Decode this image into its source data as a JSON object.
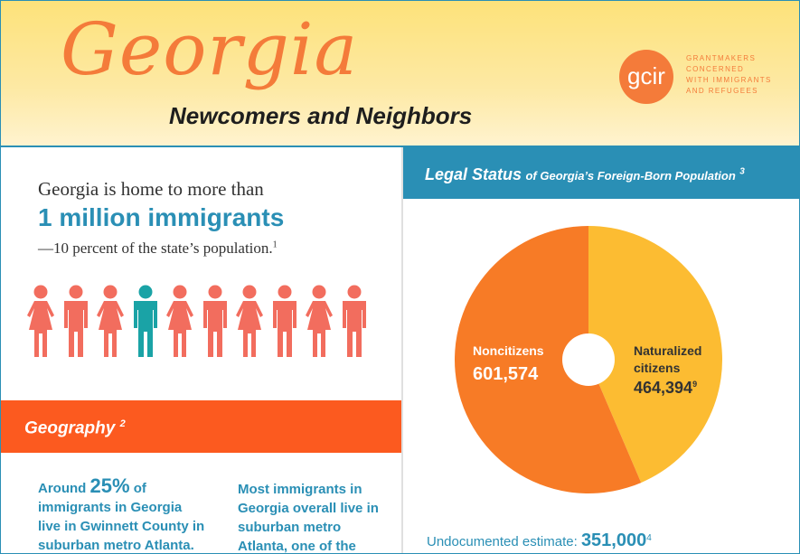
{
  "header": {
    "title": "Georgia",
    "subtitle": "Newcomers and Neighbors",
    "logo": {
      "mark": "gcir",
      "lines": [
        "GRANTMAKERS",
        "CONCERNED",
        "WITH IMMIGRANTS",
        "AND REFUGEES"
      ]
    }
  },
  "intro": {
    "line1": "Georgia is home to more than",
    "headline": "1 million immigrants",
    "line2": "—10 percent of the state’s population.",
    "line2_note": "1",
    "people_icons": [
      "female-icon",
      "male-icon",
      "female-icon",
      "male-icon",
      "female-icon",
      "male-icon",
      "female-icon",
      "male-icon",
      "female-icon",
      "male-icon"
    ],
    "highlighted_index": 3,
    "colors": {
      "default": "#f26d5e",
      "highlight": "#1aa3a6"
    }
  },
  "geography": {
    "title": "Geography",
    "note": "2",
    "left": {
      "prefix": "Around",
      "pct": "25%",
      "suffix": "of immigrants in Georgia live in Gwinnett County in suburban metro Atlanta."
    },
    "right": "Most immigrants in Georgia overall live in suburban metro Atlanta, one of the"
  },
  "legal_status": {
    "title_main": "Legal Status",
    "title_rest": "of Georgia’s Foreign-Born Population",
    "note": "3",
    "undocumented_label": "Undocumented estimate:",
    "undocumented_value": "351,000",
    "undocumented_note": "4"
  },
  "chart_data": {
    "type": "pie",
    "title": "",
    "slices": [
      {
        "label": "Noncitizens",
        "value": 601574,
        "display": "601,574",
        "note": "",
        "color": "#f77b26"
      },
      {
        "label": "Naturalized citizens",
        "label_lines": [
          "Naturalized",
          "citizens"
        ],
        "value": 464394,
        "display": "464,394",
        "note": "9",
        "color": "#fcbc32"
      }
    ],
    "donut_hole": true,
    "start_angle_deg": 0,
    "direction": "clockwise-from-top: naturalized first"
  },
  "colors": {
    "blue": "#2a8fb5",
    "orange": "#fc5a1f",
    "title_orange": "#f47b3a"
  }
}
